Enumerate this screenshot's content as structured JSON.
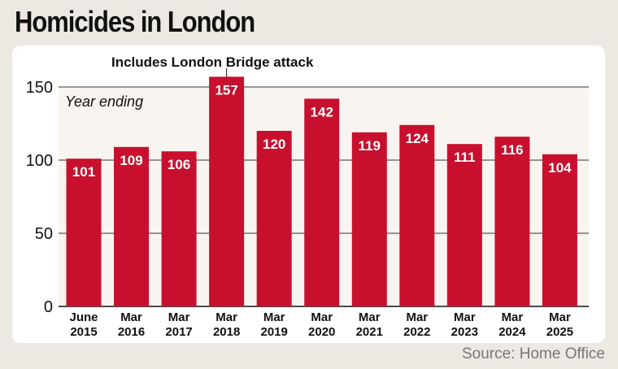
{
  "title": "Homicides in London",
  "source": "Source: Home Office",
  "chart_data": {
    "type": "bar",
    "title": "Homicides in London",
    "ylabel": "Year ending",
    "categories": [
      [
        "June",
        "2015"
      ],
      [
        "Mar",
        "2016"
      ],
      [
        "Mar",
        "2017"
      ],
      [
        "Mar",
        "2018"
      ],
      [
        "Mar",
        "2019"
      ],
      [
        "Mar",
        "2020"
      ],
      [
        "Mar",
        "2021"
      ],
      [
        "Mar",
        "2022"
      ],
      [
        "Mar",
        "2023"
      ],
      [
        "Mar",
        "2024"
      ],
      [
        "Mar",
        "2025"
      ]
    ],
    "values": [
      101,
      109,
      106,
      157,
      120,
      142,
      119,
      124,
      111,
      116,
      104
    ],
    "ylim": [
      0,
      150
    ],
    "yticks": [
      0,
      50,
      100,
      150
    ],
    "grid": true,
    "annotation": {
      "text": "Includes London Bridge attack",
      "category_index": 3
    },
    "colors": {
      "bar": "#c8102e",
      "plot_bg": "#f8f4ef",
      "grid": "#333333"
    }
  }
}
